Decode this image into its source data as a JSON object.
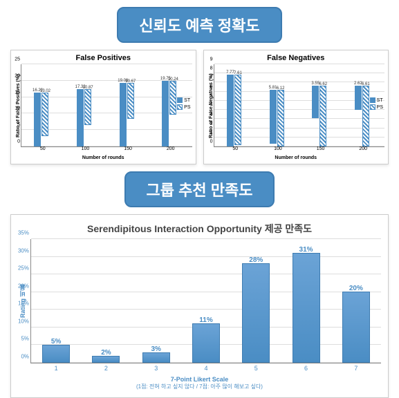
{
  "header1": "신뢰도 예측 정확도",
  "header2": "그룹 추천 만족도",
  "chart_fp": {
    "type": "bar",
    "title": "False Positives",
    "ylabel": "Ratio of False Positives (%)",
    "xlabel": "Number of rounds",
    "ymax": 25,
    "ytick_step": 5,
    "categories": [
      "50",
      "100",
      "150",
      "200"
    ],
    "series": [
      {
        "name": "ST",
        "fill": "solid",
        "color": "#4a8dc4",
        "values": [
          16.2,
          17.32,
          19.08,
          19.75
        ]
      },
      {
        "name": "PS",
        "fill": "hatch",
        "color": "#4a8dc4",
        "values": [
          13.02,
          10.87,
          10.67,
          10.24
        ]
      }
    ]
  },
  "chart_fn": {
    "type": "bar",
    "title": "False Negatives",
    "ylabel": "Ratio of False Negatives (%)",
    "xlabel": "Number of rounds",
    "ymax": 9,
    "ytick_step": 1,
    "categories": [
      "50",
      "100",
      "150",
      "200"
    ],
    "series": [
      {
        "name": "ST",
        "fill": "solid",
        "color": "#4a8dc4",
        "values": [
          7.77,
          5.81,
          3.55,
          2.62
        ]
      },
      {
        "name": "PS",
        "fill": "hatch",
        "color": "#4a8dc4",
        "values": [
          7.61,
          6.12,
          6.62,
          6.61
        ]
      }
    ]
  },
  "chart_lower": {
    "type": "bar",
    "title": "Serendipitous Interaction Opportunity 제공 만족도",
    "ylabel": "Rating 비율",
    "xlabel": "7-Point Likert Scale",
    "xsub": "(1점: 전혀 하고 싶지 않다 / 7점: 아주 많이 해보고 싶다)",
    "ymax": 35,
    "ytick_step": 5,
    "categories": [
      "1",
      "2",
      "3",
      "4",
      "5",
      "6",
      "7"
    ],
    "values": [
      5,
      2,
      3,
      11,
      28,
      31,
      20
    ],
    "labels": [
      "5%",
      "2%",
      "3%",
      "11%",
      "28%",
      "31%",
      "20%"
    ],
    "bar_color": "#4a8dc4"
  }
}
